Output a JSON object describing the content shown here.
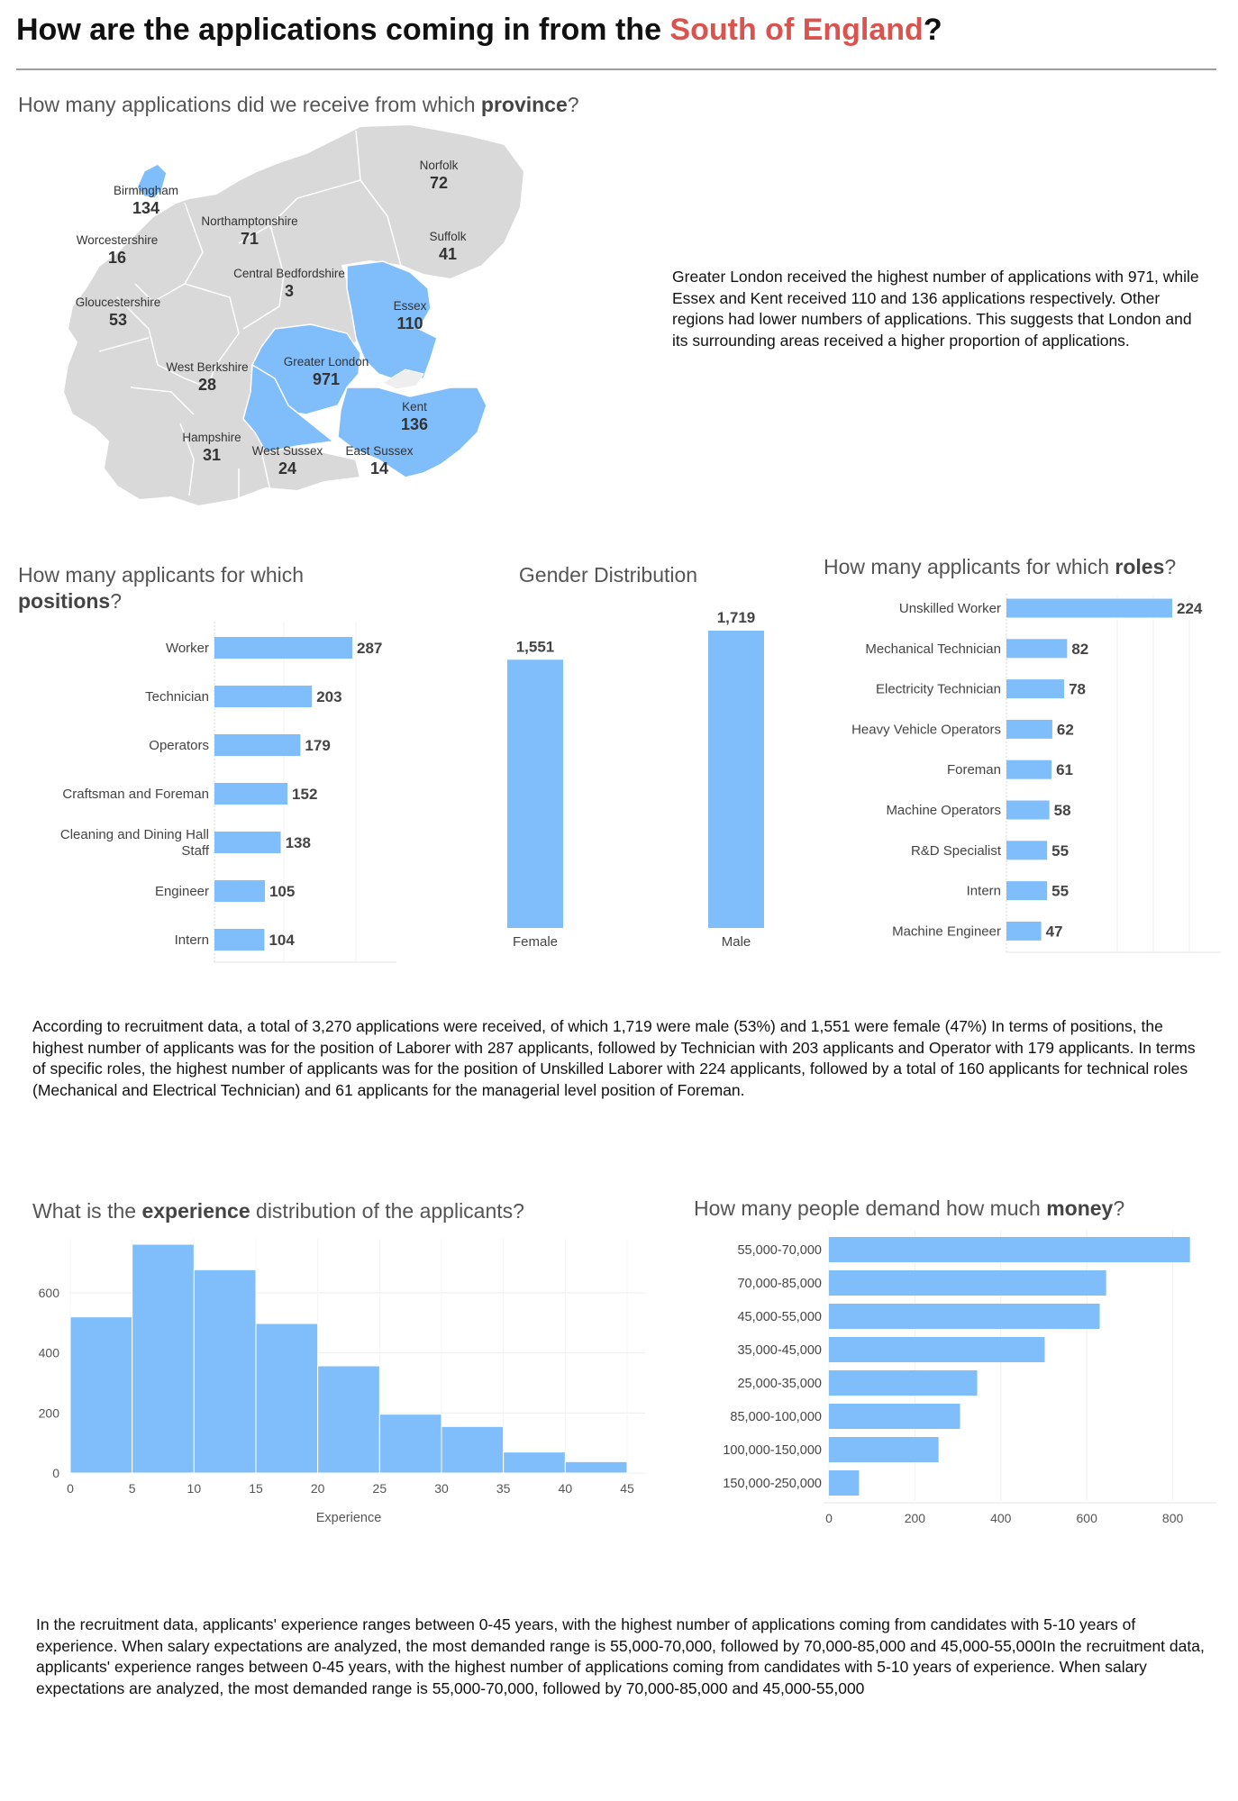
{
  "header": {
    "title_pre": "How are the applications coming in from the ",
    "title_highlight": "South of England",
    "title_post": "?"
  },
  "province": {
    "title_pre": "How many applications did we receive from which ",
    "title_bold": "province",
    "title_post": "?",
    "summary": "Greater London received the highest number of applications with 971, while Essex and Kent received 110 and 136 applications respectively. Other regions had lower numbers of applications. This suggests that London and its surrounding areas received a higher proportion of applications."
  },
  "positions": {
    "title_pre": "How many applicants for which ",
    "title_bold": "positions",
    "title_post": "?"
  },
  "gender": {
    "title": "Gender Distribution"
  },
  "roles": {
    "title_pre": "How many applicants for which ",
    "title_bold": "roles",
    "title_post": "?"
  },
  "summary_middle": "According to recruitment data, a total of 3,270 applications were received, of which 1,719 were male (53%) and 1,551 were female (47%) In terms of positions, the highest number of applicants was for the position of Laborer with 287 applicants, followed by Technician with 203 applicants and Operator with 179 applicants. In terms of specific roles, the highest number of applicants was for the position of Unskilled Laborer with 224 applicants, followed by a total of 160 applicants for technical roles (Mechanical and Electrical Technician) and 61 applicants for the managerial level position of Foreman.",
  "experience": {
    "title_pre": "What is the ",
    "title_bold": "experience",
    "title_post": " distribution of the applicants?"
  },
  "money": {
    "title_pre": "How many people demand how much ",
    "title_bold": "money",
    "title_post": "?"
  },
  "summary_bottom": "In the recruitment data, applicants' experience ranges between 0-45 years, with the highest number of applications coming from candidates with 5-10 years of experience. When salary expectations are analyzed, the most demanded range is 55,000-70,000, followed by 70,000-85,000 and 45,000-55,000In the recruitment data, applicants' experience ranges between 0-45 years, with the highest number of applications coming from candidates with 5-10 years of experience. When salary expectations are analyzed, the most demanded range is 55,000-70,000, followed by 70,000-85,000 and 45,000-55,000",
  "colors": {
    "bar": "#80bdfb",
    "highlight": "#d9534f",
    "map_grey": "#d9d9d9",
    "map_blue": "#80bdfb"
  },
  "chart_data": [
    {
      "type": "map",
      "regions": [
        {
          "name": "Norfolk",
          "value": 72,
          "highlighted": false
        },
        {
          "name": "Birmingham",
          "value": 134,
          "highlighted": true
        },
        {
          "name": "Northamptonshire",
          "value": 71,
          "highlighted": false
        },
        {
          "name": "Suffolk",
          "value": 41,
          "highlighted": false
        },
        {
          "name": "Worcestershire",
          "value": 16,
          "highlighted": false
        },
        {
          "name": "Central Bedfordshire",
          "value": 3,
          "highlighted": false
        },
        {
          "name": "Gloucestershire",
          "value": 53,
          "highlighted": false
        },
        {
          "name": "Essex",
          "value": 110,
          "highlighted": true
        },
        {
          "name": "West Berkshire",
          "value": 28,
          "highlighted": false
        },
        {
          "name": "Greater London",
          "value": 971,
          "highlighted": true
        },
        {
          "name": "Kent",
          "value": 136,
          "highlighted": true
        },
        {
          "name": "Hampshire",
          "value": 31,
          "highlighted": false
        },
        {
          "name": "West Sussex",
          "value": 24,
          "highlighted": false
        },
        {
          "name": "East Sussex",
          "value": 14,
          "highlighted": false
        }
      ]
    },
    {
      "type": "bar",
      "orientation": "horizontal",
      "categories": [
        "Worker",
        "Technician",
        "Operators",
        "Craftsman and Foreman",
        "Cleaning and Dining Hall Staff",
        "Engineer",
        "Intern"
      ],
      "values": [
        287,
        203,
        179,
        152,
        138,
        105,
        104
      ]
    },
    {
      "type": "bar",
      "orientation": "vertical",
      "categories": [
        "Female",
        "Male"
      ],
      "values": [
        1551,
        1719
      ],
      "value_labels": [
        "1,551",
        "1,719"
      ]
    },
    {
      "type": "bar",
      "orientation": "horizontal",
      "categories": [
        "Unskilled Worker",
        "Mechanical Technician",
        "Electricity Technician",
        "Heavy Vehicle Operators",
        "Foreman",
        "Machine Operators",
        "R&D Specialist",
        "Intern",
        "Machine Engineer"
      ],
      "values": [
        224,
        82,
        78,
        62,
        61,
        58,
        55,
        55,
        47
      ]
    },
    {
      "type": "histogram",
      "bins": [
        [
          0,
          5
        ],
        [
          5,
          10
        ],
        [
          10,
          15
        ],
        [
          15,
          20
        ],
        [
          20,
          25
        ],
        [
          25,
          30
        ],
        [
          30,
          35
        ],
        [
          35,
          40
        ],
        [
          40,
          45
        ]
      ],
      "values": [
        520,
        762,
        677,
        498,
        357,
        196,
        155,
        70,
        38
      ],
      "xlabel": "Experience",
      "xticks": [
        0,
        5,
        10,
        15,
        20,
        25,
        30,
        35,
        40,
        45
      ],
      "yticks": [
        0,
        200,
        400,
        600
      ],
      "xlim": [
        0,
        45
      ],
      "ylim": [
        0,
        780
      ]
    },
    {
      "type": "bar",
      "orientation": "horizontal",
      "categories": [
        "55,000-70,000",
        "70,000-85,000",
        "45,000-55,000",
        "35,000-45,000",
        "25,000-35,000",
        "85,000-100,000",
        "100,000-150,000",
        "150,000-250,000"
      ],
      "values": [
        840,
        645,
        630,
        502,
        345,
        305,
        255,
        70
      ],
      "xticks": [
        0,
        200,
        400,
        600,
        800
      ],
      "xlim": [
        0,
        870
      ]
    }
  ]
}
